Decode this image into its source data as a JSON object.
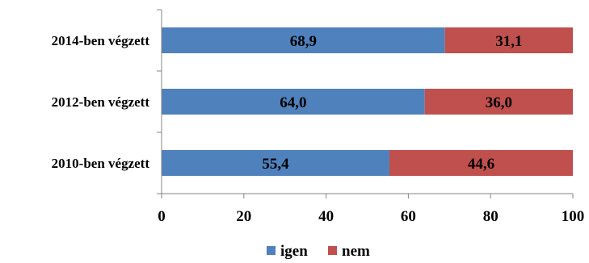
{
  "chart_data": {
    "type": "bar",
    "orientation": "horizontal",
    "stacked": true,
    "categories": [
      "2014-ben végzett",
      "2012-ben végzett",
      "2010-ben végzett"
    ],
    "series": [
      {
        "name": "igen",
        "values": [
          68.9,
          64.0,
          55.4
        ],
        "labels": [
          "68,9",
          "64,0",
          "55,4"
        ],
        "color": "#4F81BD"
      },
      {
        "name": "nem",
        "values": [
          31.1,
          36.0,
          44.6
        ],
        "labels": [
          "31,1",
          "36,0",
          "44,6"
        ],
        "color": "#C0504D"
      }
    ],
    "xlim": [
      0,
      100
    ],
    "xticks": [
      "0",
      "20",
      "40",
      "60",
      "80",
      "100"
    ],
    "grid": false,
    "legend": "bottom",
    "title": "",
    "xlabel": "",
    "ylabel": ""
  }
}
